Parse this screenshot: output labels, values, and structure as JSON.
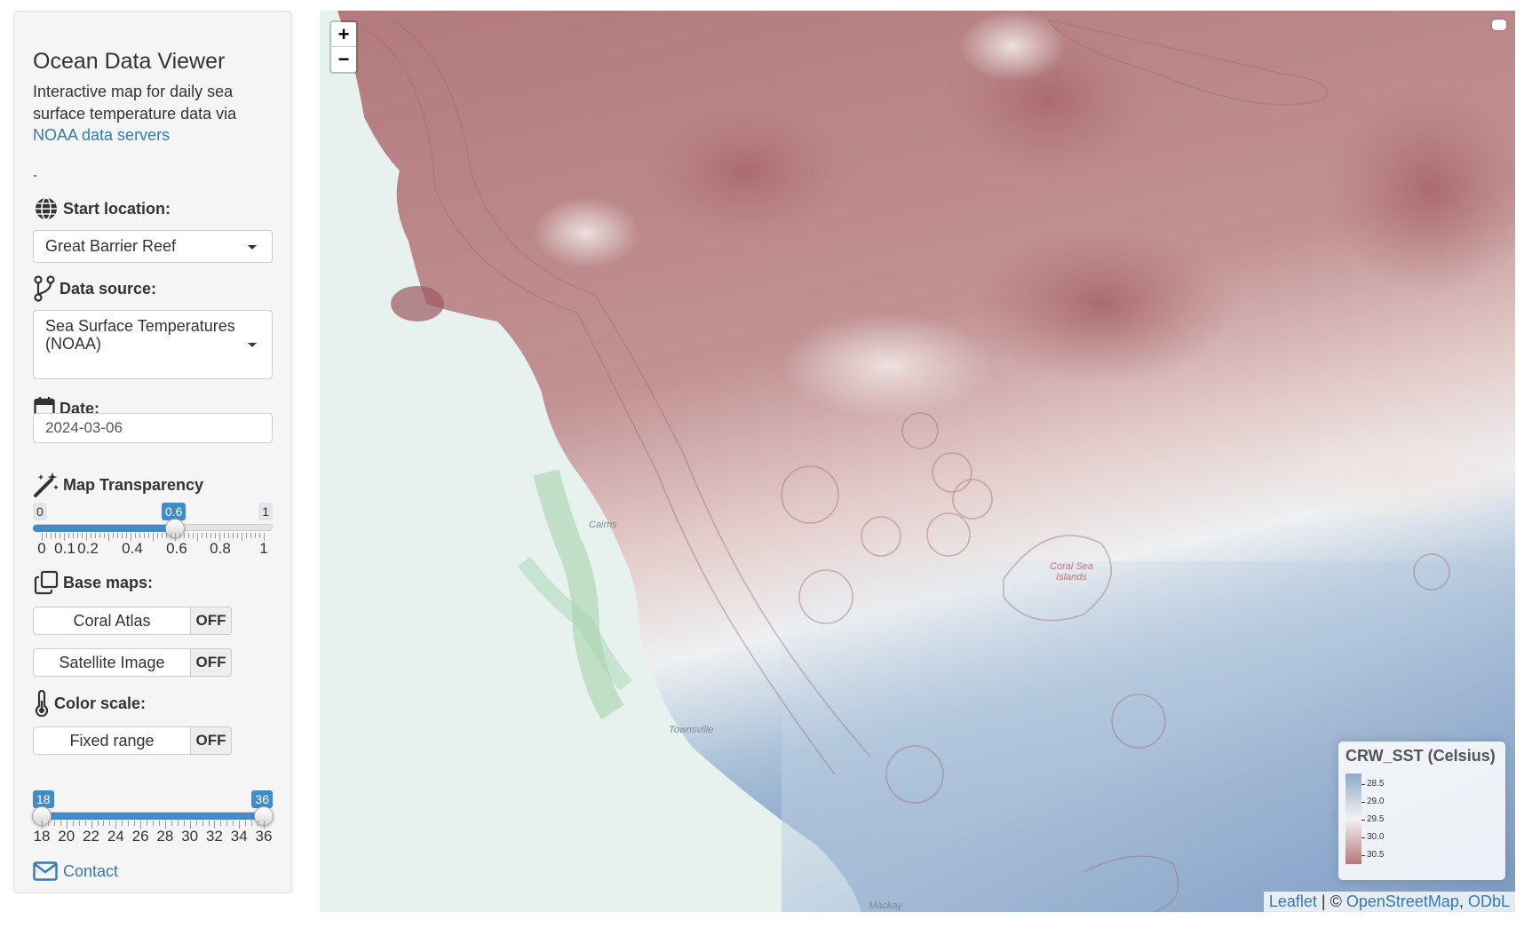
{
  "sidebar": {
    "title": "Ocean Data Viewer",
    "description": "Interactive map for daily sea surface temperature data via ",
    "description_link": "NOAA data servers",
    "dot": ".",
    "start_location": {
      "label": "Start location:",
      "value": "Great Barrier Reef"
    },
    "data_source": {
      "label": "Data source:",
      "value": "Sea Surface Temperatures (NOAA)"
    },
    "date": {
      "label": "Date:",
      "value": "2024-03-06"
    },
    "transparency": {
      "label": "Map Transparency",
      "min_label": "0",
      "max_label": "1",
      "value_label": "0.6",
      "value": 0.6,
      "ticks": [
        "0",
        "0.1",
        "0.2",
        "0.4",
        "0.6",
        "0.8",
        "1"
      ]
    },
    "base_maps": {
      "label": "Base maps:",
      "coral_atlas": {
        "label": "Coral Atlas",
        "state": "OFF"
      },
      "satellite": {
        "label": "Satellite Image",
        "state": "OFF"
      }
    },
    "color_scale": {
      "label": "Color scale:",
      "fixed_range": {
        "label": "Fixed range",
        "state": "OFF"
      },
      "range": {
        "min_label": "18",
        "max_label": "36",
        "min": 18,
        "max": 36,
        "ticks": [
          "18",
          "20",
          "22",
          "24",
          "26",
          "28",
          "30",
          "32",
          "34",
          "36"
        ]
      }
    },
    "contact": "Contact"
  },
  "map": {
    "zoom_in": "+",
    "zoom_out": "−",
    "places": {
      "cairns": "Cairns",
      "townsville": "Townsville",
      "mackay": "Mackay",
      "coral_sea_1": "Coral Sea",
      "coral_sea_2": "Islands"
    },
    "legend": {
      "title": "CRW_SST (Celsius)",
      "labels": [
        "28.5",
        "29.0",
        "29.5",
        "30.0",
        "30.5"
      ]
    },
    "attribution": {
      "leaflet": "Leaflet",
      "sep": " | © ",
      "osm": "OpenStreetMap",
      "comma": ", ",
      "odbl": "ODbL"
    }
  },
  "colors": {
    "accent": "#428bca",
    "link": "#337ab7",
    "warm": "#b8777c",
    "cool": "#8ea9c9"
  }
}
